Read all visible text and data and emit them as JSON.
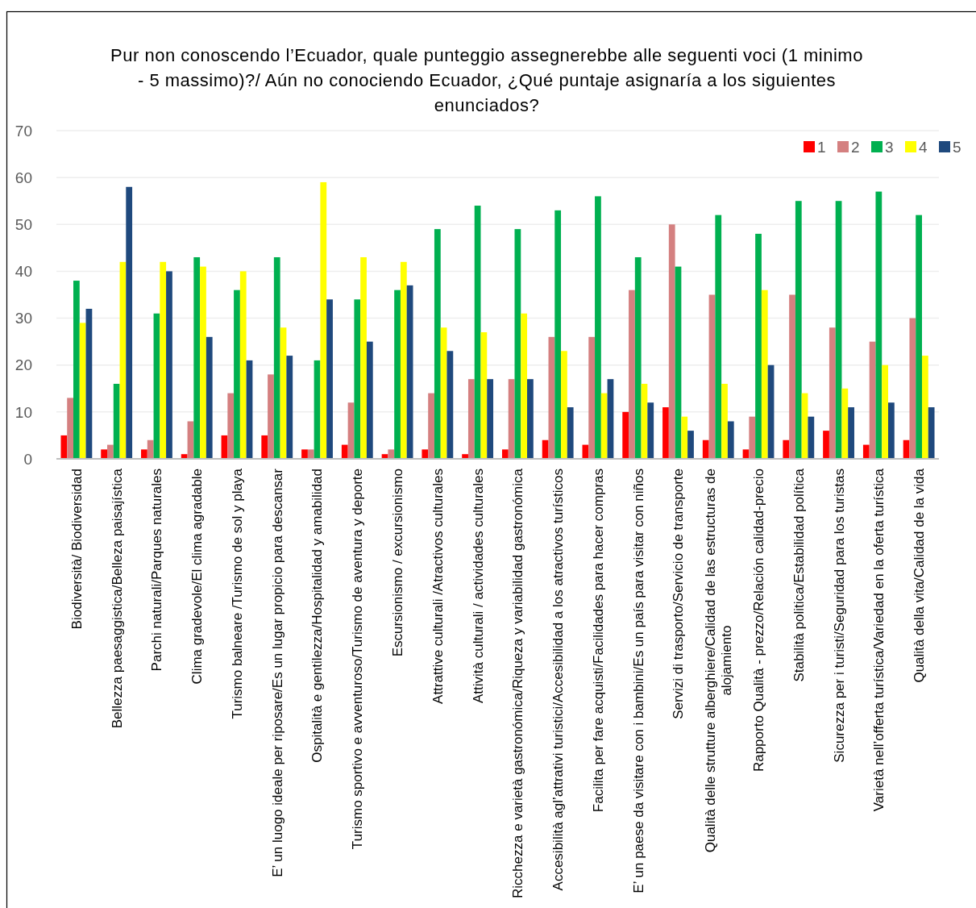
{
  "chart_data": {
    "type": "bar",
    "title": "Pur non conoscendo l’Ecuador, quale punteggio assegnerebbe alle seguenti voci (1 minimo - 5 massimo)?/ Aún no conociendo Ecuador, ¿Qué puntaje asignaría a los siguientes enunciados?",
    "categories": [
      "Biodiversità/ Biodiversidad",
      "Bellezza paesaggistica/Belleza paisajística",
      "Parchi naturali/Parques naturales",
      "Clima gradevole/El clima agradable",
      "Turismo balneare /Turismo de sol y playa",
      "E’ un luogo ideale per riposare/Es un lugar propicio para descansar",
      "Ospitalità e gentilezza/Hospitalidad y amabilidad",
      "Turismo sportivo e avventuroso/Turismo de aventura y deporte",
      "Escursionismo / excursionismo",
      "Attrattive culturali /Atractivos culturales",
      "Attività culturali / actividades culturales",
      "Ricchezza e varietà gastronómica/Riqueza y variabilidad gastronómica",
      "Accesibilità agl’attrativi turistici/Accesibilidad a los atractivos turísticos",
      "Facilita per fare acquisti/Facilidades para hacer compras",
      "E’ un paese da visitare con i bambini/Es un país para visitar con niños",
      "Servizi di trasporto/Servicio de transporte",
      "Qualità delle strutture alberghiere/Calidad de las estructuras de alojamiento",
      "Rapporto Qualità - prezzo/Relación calidad-precio",
      "Stabilità politica/Estabilidad política",
      "Sicurezza per i turisti/Seguridad para los turistas",
      "Varietà nell’offerta turística/Variedad en la oferta turística",
      "Qualità della vita/Calidad de la vida"
    ],
    "series": [
      {
        "name": "1",
        "color": "#ff0000",
        "values": [
          5,
          2,
          2,
          1,
          5,
          5,
          2,
          3,
          1,
          2,
          1,
          2,
          4,
          3,
          10,
          11,
          4,
          2,
          4,
          6,
          3,
          4
        ]
      },
      {
        "name": "2",
        "color": "#d48080",
        "values": [
          13,
          3,
          4,
          8,
          14,
          18,
          2,
          12,
          2,
          14,
          17,
          17,
          26,
          26,
          36,
          50,
          35,
          9,
          35,
          28,
          25,
          30
        ]
      },
      {
        "name": "3",
        "color": "#00b050",
        "values": [
          38,
          16,
          31,
          43,
          36,
          43,
          21,
          34,
          36,
          49,
          54,
          49,
          53,
          56,
          43,
          41,
          52,
          48,
          55,
          55,
          57,
          52
        ]
      },
      {
        "name": "4",
        "color": "#ffff00",
        "values": [
          29,
          42,
          42,
          41,
          40,
          28,
          59,
          43,
          42,
          28,
          27,
          31,
          23,
          14,
          16,
          9,
          16,
          36,
          14,
          15,
          20,
          22
        ]
      },
      {
        "name": "5",
        "color": "#1f497d",
        "values": [
          32,
          58,
          40,
          26,
          21,
          22,
          34,
          25,
          37,
          23,
          17,
          17,
          11,
          17,
          12,
          6,
          8,
          20,
          9,
          11,
          12,
          11
        ]
      }
    ],
    "ylim": [
      0,
      70
    ],
    "yticks": [
      0,
      10,
      20,
      30,
      40,
      50,
      60,
      70
    ],
    "grid": "y",
    "legend": "top right"
  }
}
